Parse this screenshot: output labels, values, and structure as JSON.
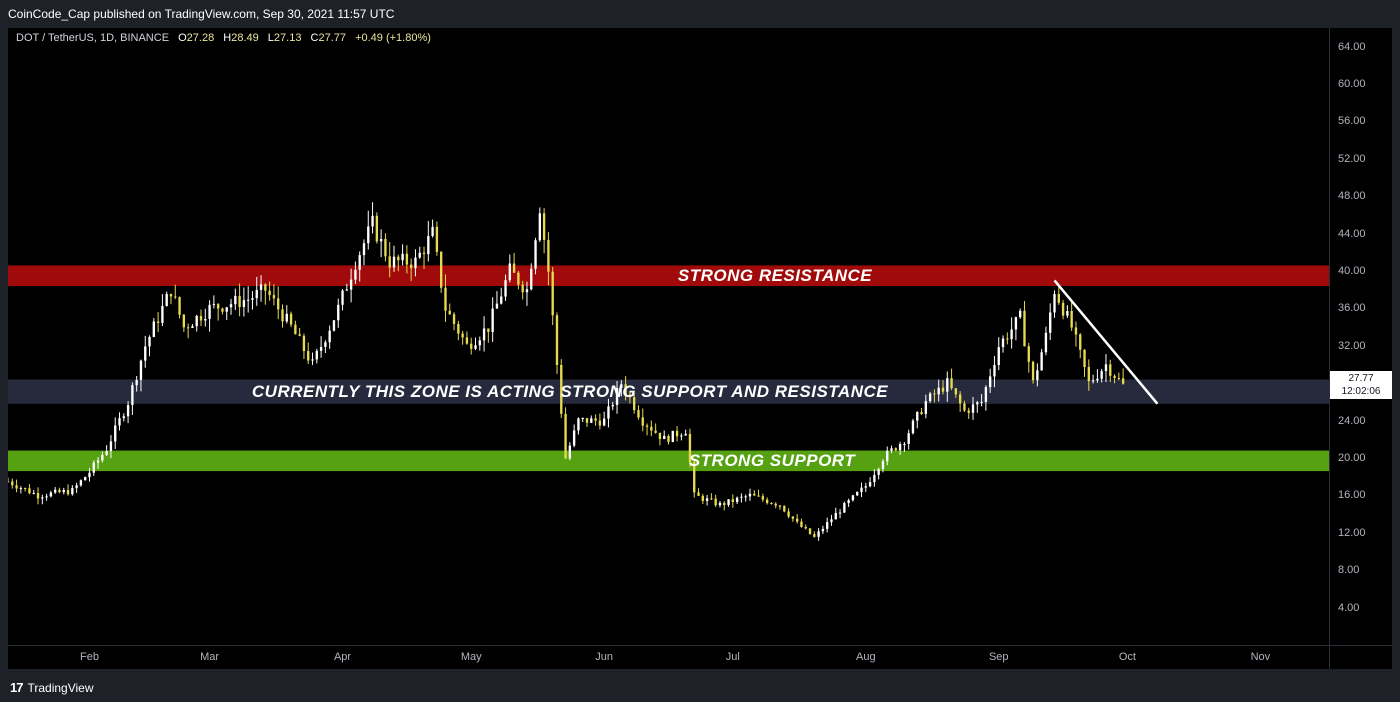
{
  "header": {
    "text": "CoinCode_Cap published on TradingView.com, Sep 30, 2021 11:57 UTC"
  },
  "legend": {
    "symbol": "DOT / TetherUS, 1D, BINANCE",
    "open_label": "O",
    "open": "27.28",
    "high_label": "H",
    "high": "28.49",
    "low_label": "L",
    "low": "27.13",
    "close_label": "C",
    "close": "27.77",
    "change": "+0.49 (+1.80%)"
  },
  "price_tag": {
    "price": "27.77",
    "countdown": "12:02:06"
  },
  "footer": {
    "logo": "17",
    "brand": "TradingView"
  },
  "zones": [
    {
      "name": "resistance",
      "label": "STRONG RESISTANCE",
      "low": 38.4,
      "high": 40.6,
      "color": "#a00a0a"
    },
    {
      "name": "mid",
      "label": "CURRENTLY THIS ZONE IS ACTING STRONG SUPPORT AND RESISTANCE",
      "low": 25.8,
      "high": 28.4,
      "color": "#262a3c"
    },
    {
      "name": "support",
      "label": "STRONG SUPPORT",
      "low": 18.6,
      "high": 20.8,
      "color": "#55a112"
    }
  ],
  "colors": {
    "up": "#ffffff",
    "down": "#e6da50",
    "trendline": "#ffffff"
  },
  "chart_data": {
    "type": "candlestick",
    "ylim": [
      0,
      66
    ],
    "y_ticks": [
      "4.00",
      "8.00",
      "12.00",
      "16.00",
      "20.00",
      "24.00",
      "28.00",
      "32.00",
      "36.00",
      "40.00",
      "44.00",
      "48.00",
      "52.00",
      "56.00",
      "60.00",
      "64.00"
    ],
    "x_ticks": [
      {
        "label": "Feb",
        "date": "2021-02-01"
      },
      {
        "label": "Mar",
        "date": "2021-03-01"
      },
      {
        "label": "Apr",
        "date": "2021-04-01"
      },
      {
        "label": "May",
        "date": "2021-05-01"
      },
      {
        "label": "Jun",
        "date": "2021-06-01"
      },
      {
        "label": "Jul",
        "date": "2021-07-01"
      },
      {
        "label": "Aug",
        "date": "2021-08-01"
      },
      {
        "label": "Sep",
        "date": "2021-09-01"
      },
      {
        "label": "Oct",
        "date": "2021-10-01"
      },
      {
        "label": "Nov",
        "date": "2021-11-01"
      }
    ],
    "x_range": [
      "2021-01-13",
      "2021-11-17"
    ],
    "price_anchors": [
      [
        "2021-01-13",
        17.5
      ],
      [
        "2021-01-20",
        16.0
      ],
      [
        "2021-01-28",
        16.5
      ],
      [
        "2021-02-01",
        18.5
      ],
      [
        "2021-02-05",
        21.0
      ],
      [
        "2021-02-10",
        26.0
      ],
      [
        "2021-02-14",
        32.0
      ],
      [
        "2021-02-20",
        38.0
      ],
      [
        "2021-02-23",
        34.0
      ],
      [
        "2021-03-01",
        36.0
      ],
      [
        "2021-03-10",
        37.0
      ],
      [
        "2021-03-14",
        38.0
      ],
      [
        "2021-03-20",
        34.0
      ],
      [
        "2021-03-25",
        30.0
      ],
      [
        "2021-03-31",
        36.0
      ],
      [
        "2021-04-04",
        41.0
      ],
      [
        "2021-04-08",
        45.0
      ],
      [
        "2021-04-12",
        41.0
      ],
      [
        "2021-04-18",
        41.0
      ],
      [
        "2021-04-22",
        44.0
      ],
      [
        "2021-04-25",
        36.0
      ],
      [
        "2021-04-30",
        32.0
      ],
      [
        "2021-05-05",
        34.0
      ],
      [
        "2021-05-10",
        40.0
      ],
      [
        "2021-05-14",
        38.0
      ],
      [
        "2021-05-17",
        47.0
      ],
      [
        "2021-05-19",
        40.0
      ],
      [
        "2021-05-21",
        30.0
      ],
      [
        "2021-05-23",
        20.0
      ],
      [
        "2021-05-26",
        24.0
      ],
      [
        "2021-06-01",
        24.0
      ],
      [
        "2021-06-05",
        28.0
      ],
      [
        "2021-06-10",
        24.0
      ],
      [
        "2021-06-15",
        22.0
      ],
      [
        "2021-06-20",
        23.0
      ],
      [
        "2021-06-22",
        16.0
      ],
      [
        "2021-06-28",
        15.0
      ],
      [
        "2021-07-05",
        16.0
      ],
      [
        "2021-07-12",
        15.0
      ],
      [
        "2021-07-16",
        13.0
      ],
      [
        "2021-07-20",
        11.5
      ],
      [
        "2021-07-25",
        14.0
      ],
      [
        "2021-08-01",
        17.0
      ],
      [
        "2021-08-05",
        20.0
      ],
      [
        "2021-08-10",
        22.0
      ],
      [
        "2021-08-15",
        26.0
      ],
      [
        "2021-08-20",
        28.0
      ],
      [
        "2021-08-24",
        25.0
      ],
      [
        "2021-08-28",
        26.0
      ],
      [
        "2021-09-01",
        32.0
      ],
      [
        "2021-09-06",
        35.0
      ],
      [
        "2021-09-09",
        28.0
      ],
      [
        "2021-09-12",
        33.0
      ],
      [
        "2021-09-14",
        38.0
      ],
      [
        "2021-09-18",
        34.0
      ],
      [
        "2021-09-22",
        28.0
      ],
      [
        "2021-09-26",
        30.0
      ],
      [
        "2021-09-30",
        27.77
      ]
    ],
    "trendline": {
      "from": [
        "2021-09-14",
        39.0
      ],
      "to": [
        "2021-10-08",
        25.8
      ]
    }
  }
}
